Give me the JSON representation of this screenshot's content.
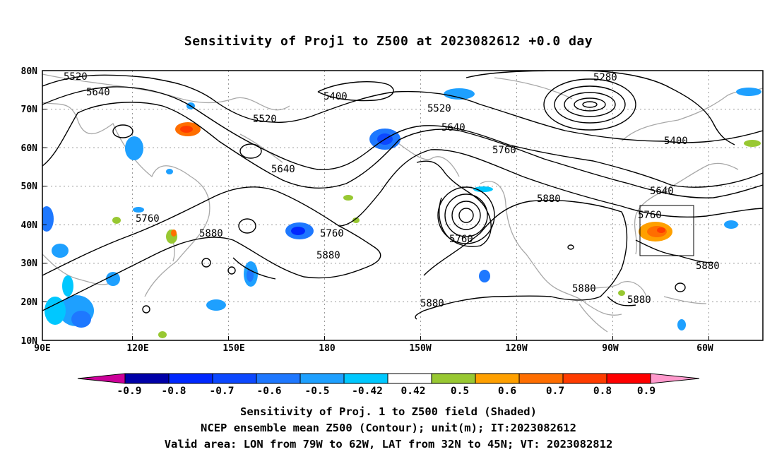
{
  "title": "Sensitivity of Proj1 to Z500 at 2023082612 +0.0 day",
  "map": {
    "lat_ticks": [
      "80N",
      "70N",
      "60N",
      "50N",
      "40N",
      "30N",
      "20N",
      "10N"
    ],
    "lon_ticks": [
      "90E",
      "120E",
      "150E",
      "180",
      "150W",
      "120W",
      "90W",
      "60W"
    ],
    "contour_labels": [
      "5520",
      "5640",
      "5400",
      "5280",
      "5520",
      "5640",
      "5400",
      "5760",
      "5520",
      "5640",
      "5640",
      "5760",
      "5880",
      "5760",
      "5880",
      "5760",
      "5880",
      "5880",
      "5880",
      "5880",
      "5880",
      "5760"
    ],
    "valid_area": {
      "lon_from": "79W",
      "lon_to": "62W",
      "lat_from": "32N",
      "lat_to": "45N"
    }
  },
  "colorbar": {
    "labels": [
      "-0.9",
      "-0.8",
      "-0.7",
      "-0.6",
      "-0.5",
      "-0.42",
      "0.42",
      "0.5",
      "0.6",
      "0.7",
      "0.8",
      "0.9"
    ],
    "colors": [
      "#0000a8",
      "#0028ff",
      "#0c48ff",
      "#1e78ff",
      "#1ea0ff",
      "#00c8ff",
      "#ffffff",
      "#98c832",
      "#ffa000",
      "#ff6e00",
      "#ff3c00",
      "#ff0000"
    ],
    "low_end_color": "#cc0099",
    "high_end_color": "#ff99cc"
  },
  "footer": {
    "line1": "Sensitivity of Proj. 1 to Z500 field (Shaded)",
    "line2": "NCEP ensemble mean Z500 (Contour); unit(m); IT:2023082612",
    "line3": "Valid area: LON from 79W to 62W, LAT from 32N to 45N; VT: 2023082812"
  }
}
